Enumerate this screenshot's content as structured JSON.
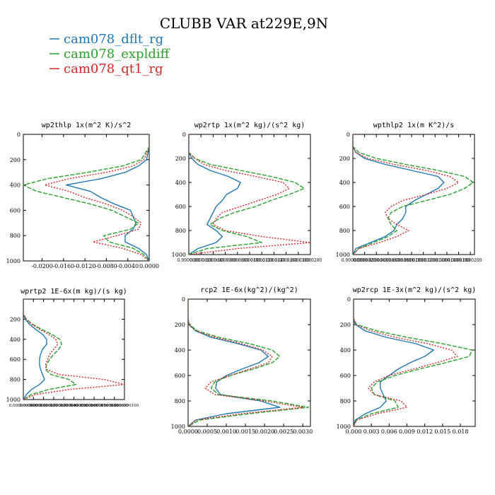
{
  "figure": {
    "title": "CLUBB VAR at229E,9N"
  },
  "colors": {
    "cam078_dflt_rg": "#1f77b4",
    "cam078_expldiff": "#2ca02c",
    "cam078_qt1_rg": "#d62728"
  },
  "legend": [
    {
      "name": "cam078_dflt_rg",
      "style": "solid"
    },
    {
      "name": "cam078_expldiff",
      "style": "dashed"
    },
    {
      "name": "cam078_qt1_rg",
      "style": "dotted"
    }
  ],
  "chart_data": [
    {
      "type": "line",
      "title": "wp2thlp  1x(m^2 K)/s^2",
      "ylim": [
        1000,
        0
      ],
      "yticks": [
        "0",
        "200",
        "400",
        "600",
        "800",
        "1000"
      ],
      "xlim": [
        -0.0235,
        0.0
      ],
      "xticks": [
        -0.02,
        -0.016,
        -0.012,
        -0.008,
        -0.004,
        0.0
      ],
      "xtick_labels": [
        "-0.0200",
        "-0.0160",
        "-0.0120",
        "-0.0080",
        "-0.0040",
        "0.0000"
      ],
      "y": [
        0,
        100,
        200,
        250,
        300,
        350,
        400,
        450,
        500,
        550,
        600,
        650,
        700,
        750,
        800,
        850,
        900,
        950,
        1000
      ],
      "series": [
        {
          "name": "cam078_dflt_rg",
          "values": [
            0,
            0,
            -0.0005,
            -0.002,
            -0.0045,
            -0.009,
            -0.0155,
            -0.011,
            -0.009,
            -0.0065,
            -0.0035,
            -0.003,
            -0.0025,
            -0.003,
            -0.0045,
            -0.0045,
            -0.002,
            -0.0005,
            0
          ]
        },
        {
          "name": "cam078_expldiff",
          "values": [
            0,
            0,
            -0.0015,
            -0.005,
            -0.0115,
            -0.019,
            -0.0235,
            -0.021,
            -0.016,
            -0.011,
            -0.007,
            -0.0045,
            -0.002,
            -0.0035,
            -0.0085,
            -0.0075,
            -0.003,
            -0.001,
            0
          ]
        },
        {
          "name": "cam078_qt1_rg",
          "values": [
            0,
            0,
            -0.001,
            -0.003,
            -0.008,
            -0.015,
            -0.0195,
            -0.015,
            -0.012,
            -0.008,
            -0.005,
            -0.003,
            -0.0015,
            -0.002,
            -0.006,
            -0.0105,
            -0.005,
            -0.0015,
            0
          ]
        }
      ]
    },
    {
      "type": "line",
      "title": "wp2rtp  1x(m^2 kg)/(s^2 kg)",
      "ylim": [
        1000,
        0
      ],
      "yticks": [
        "0",
        "200",
        "400",
        "600",
        "800",
        "1000"
      ],
      "xlim": [
        0,
        2e-05
      ],
      "xticks": [
        0,
        2e-06,
        4e-06,
        6e-06,
        8e-06,
        1e-05,
        1.2e-05,
        1.4e-05,
        1.6e-05,
        1.8e-05,
        2e-05
      ],
      "xtick_labels": [
        "0.0000000",
        "0.0000020",
        "0.0000040",
        "0.0000060",
        "0.0000080",
        "0.0000100",
        "0.0000120",
        "0.0000140",
        "0.0000160",
        "0.0000180",
        "0.0000200"
      ],
      "y": [
        0,
        100,
        150,
        200,
        250,
        300,
        350,
        400,
        450,
        500,
        550,
        600,
        650,
        700,
        750,
        800,
        850,
        900,
        950,
        1000
      ],
      "series": [
        {
          "name": "cam078_dflt_rg",
          "values": [
            0,
            0,
            0,
            5e-07,
            1.5e-06,
            3.5e-06,
            6.5e-06,
            8.5e-06,
            8e-06,
            6.2e-06,
            5.5e-06,
            4.5e-06,
            4e-06,
            3.5e-06,
            3e-06,
            4.5e-06,
            5.5e-06,
            4.5e-06,
            1.5e-06,
            0
          ]
        },
        {
          "name": "cam078_expldiff",
          "values": [
            0,
            0,
            0,
            1e-06,
            3.5e-06,
            8.5e-06,
            1.35e-05,
            1.75e-05,
            1.9e-05,
            1.65e-05,
            1.35e-05,
            1.1e-05,
            7.5e-06,
            5e-06,
            3.5e-06,
            5.5e-06,
            9.5e-06,
            1.2e-05,
            3e-06,
            0
          ]
        },
        {
          "name": "cam078_qt1_rg",
          "values": [
            0,
            0,
            0,
            1e-06,
            2.5e-06,
            6e-06,
            1.1e-05,
            1.55e-05,
            1.65e-05,
            1.45e-05,
            1.15e-05,
            8.5e-06,
            5.5e-06,
            4.5e-06,
            4e-06,
            6e-06,
            1.2e-05,
            2e-05,
            8e-06,
            0
          ]
        }
      ]
    },
    {
      "type": "line",
      "title": "wpthlp2  1x(m K^2)/s",
      "ylim": [
        1000,
        0
      ],
      "yticks": [
        "0",
        "200",
        "400",
        "600",
        "800",
        "1000"
      ],
      "xlim": [
        0,
        2.07e-05
      ],
      "xticks": [
        0,
        2e-06,
        4e-06,
        6e-06,
        8e-06,
        1e-05,
        1.2e-05,
        1.4e-05,
        1.6e-05,
        1.8e-05,
        2e-05
      ],
      "xtick_labels": [
        "0.0000000",
        "0.0000020",
        "0.0000040",
        "0.0000060",
        "0.0000080",
        "0.0000100",
        "0.0000120",
        "0.0000140",
        "0.0000160",
        "0.0000180",
        "0.0000200"
      ],
      "y": [
        0,
        100,
        150,
        200,
        250,
        300,
        350,
        400,
        450,
        500,
        550,
        600,
        650,
        700,
        750,
        800,
        850,
        900,
        950,
        1000
      ],
      "series": [
        {
          "name": "cam078_dflt_rg",
          "values": [
            0,
            0,
            5e-07,
            2e-06,
            5.5e-06,
            1e-05,
            1.45e-05,
            1.55e-05,
            1.45e-05,
            1.25e-05,
            1.05e-05,
            9e-06,
            9e-06,
            8.5e-06,
            7.5e-06,
            7e-06,
            5.5e-06,
            3e-06,
            5e-07,
            0
          ]
        },
        {
          "name": "cam078_expldiff",
          "values": [
            0,
            0,
            1e-06,
            4e-06,
            9e-06,
            1.45e-05,
            1.9e-05,
            2.05e-05,
            1.9e-05,
            1.65e-05,
            1.25e-05,
            8.5e-06,
            6.5e-06,
            6e-06,
            6.5e-06,
            7.5e-06,
            6e-06,
            3.5e-06,
            1e-06,
            0
          ]
        },
        {
          "name": "cam078_qt1_rg",
          "values": [
            0,
            0,
            5e-07,
            2.5e-06,
            7e-06,
            1.25e-05,
            1.65e-05,
            1.8e-05,
            1.6e-05,
            1.25e-05,
            8.5e-06,
            6.5e-06,
            5.5e-06,
            6e-06,
            7.5e-06,
            9.5e-06,
            7.5e-06,
            4.5e-06,
            1e-06,
            0
          ]
        }
      ]
    },
    {
      "type": "line",
      "title": "wprtp2  1E-6x(m kg)/(s kg)",
      "ylim": [
        1000,
        0
      ],
      "yticks": [
        "200",
        "400",
        "600",
        "800",
        "1000"
      ],
      "xlim": [
        0,
        1e-07
      ],
      "xticks": [
        0,
        1e-08,
        2e-08,
        3e-08,
        4e-08,
        5e-08,
        6e-08,
        7e-08,
        8e-08,
        9e-08,
        1e-07
      ],
      "xtick_labels": [
        "0.0000000000",
        "0.0000000010",
        "0.0000000020",
        "0.0000000030",
        "0.0000000040",
        "0.0000000050",
        "0.0000000060",
        "0.0000000070",
        "0.0000000080",
        "0.0000000090",
        "0.0000000100"
      ],
      "y": [
        0,
        150,
        200,
        250,
        300,
        350,
        400,
        450,
        500,
        550,
        600,
        650,
        700,
        750,
        800,
        850,
        900,
        950,
        1000
      ],
      "series": [
        {
          "name": "cam078_dflt_rg",
          "values": [
            0,
            0,
            2e-09,
            6e-09,
            1.2e-08,
            1.9e-08,
            2.3e-08,
            2.3e-08,
            1.9e-08,
            1.7e-08,
            1.6e-08,
            1.6e-08,
            1.7e-08,
            1.9e-08,
            2.1e-08,
            1.6e-08,
            8e-09,
            3e-09,
            0
          ]
        },
        {
          "name": "cam078_expldiff",
          "values": [
            0,
            0,
            3e-09,
            9e-09,
            1.8e-08,
            2.8e-08,
            3.6e-08,
            3.8e-08,
            3.5e-08,
            3e-08,
            2.6e-08,
            2.3e-08,
            2.2e-08,
            2.7e-08,
            4.5e-08,
            5.2e-08,
            2.5e-08,
            8e-09,
            0
          ]
        },
        {
          "name": "cam078_qt1_rg",
          "values": [
            0,
            0,
            3e-09,
            8e-09,
            1.6e-08,
            2.5e-08,
            3.2e-08,
            3.4e-08,
            3e-08,
            2.6e-08,
            2.4e-08,
            2.2e-08,
            2.3e-08,
            3.5e-08,
            8e-08,
            1e-07,
            4.5e-08,
            1.2e-08,
            0
          ]
        }
      ]
    },
    {
      "type": "line",
      "title": "rcp2  1E-6x(kg^2)/(kg^2)",
      "ylim": [
        1000,
        0
      ],
      "yticks": [
        "0",
        "200",
        "400",
        "600",
        "800",
        "1000"
      ],
      "xlim": [
        0,
        0.00032
      ],
      "xticks": [
        0,
        5e-05,
        0.0001,
        0.00015,
        0.0002,
        0.00025,
        0.0003
      ],
      "xtick_labels": [
        "0.0000",
        "0.0005",
        "0.0010",
        "0.0015",
        "0.0020",
        "0.0025",
        "0.0030"
      ],
      "y": [
        0,
        150,
        200,
        250,
        300,
        350,
        400,
        450,
        500,
        550,
        600,
        650,
        700,
        750,
        800,
        850,
        900,
        950,
        1000
      ],
      "series": [
        {
          "name": "cam078_dflt_rg",
          "values": [
            0,
            0,
            2e-06,
            2e-05,
            6e-05,
            0.00013,
            0.00019,
            0.00021,
            0.000185,
            0.00014,
            0.0001,
            7.5e-05,
            7.2e-05,
            8.5e-05,
            0.00019,
            0.00024,
            0.0001,
            2e-05,
            0
          ]
        },
        {
          "name": "cam078_expldiff",
          "values": [
            0,
            0,
            3e-06,
            2.5e-05,
            8e-05,
            0.00016,
            0.00022,
            0.00024,
            0.00022,
            0.00017,
            0.00011,
            7e-05,
            6e-05,
            8e-05,
            0.00022,
            0.000315,
            0.00016,
            3e-05,
            0
          ]
        },
        {
          "name": "cam078_qt1_rg",
          "values": [
            0,
            0,
            2e-06,
            2e-05,
            7e-05,
            0.00014,
            0.000195,
            0.00022,
            0.00021,
            0.00016,
            0.00011,
            6e-05,
            4.5e-05,
            7e-05,
            0.0002,
            0.0003,
            0.00014,
            2e-05,
            0
          ]
        }
      ]
    },
    {
      "type": "line",
      "title": "wp2rcp  1E-3x(m^2 kg)/(s^2 kg)",
      "ylim": [
        1000,
        0
      ],
      "yticks": [
        "0",
        "200",
        "400",
        "600",
        "800",
        "1000"
      ],
      "xlim": [
        0,
        2.05e-05
      ],
      "xticks": [
        0,
        3e-06,
        6e-06,
        9e-06,
        1.2e-05,
        1.5e-05,
        1.8e-05
      ],
      "xtick_labels": [
        "0.000",
        "0.003",
        "0.006",
        "0.009",
        "0.012",
        "0.015",
        "0.018"
      ],
      "y": [
        0,
        150,
        200,
        250,
        300,
        350,
        400,
        450,
        500,
        550,
        600,
        650,
        700,
        750,
        800,
        850,
        900,
        950,
        1000
      ],
      "series": [
        {
          "name": "cam078_dflt_rg",
          "values": [
            0,
            0,
            3e-07,
            2e-06,
            5.5e-06,
            1.05e-05,
            1.35e-05,
            1.2e-05,
            9.5e-06,
            7.5e-06,
            6e-06,
            4.5e-06,
            4.5e-06,
            5e-06,
            5.5e-06,
            4.5e-06,
            2e-06,
            3e-07,
            0
          ]
        },
        {
          "name": "cam078_expldiff",
          "values": [
            0,
            0,
            5e-07,
            4e-06,
            9e-06,
            1.5e-05,
            2e-05,
            1.95e-05,
            1.55e-05,
            1.1e-05,
            7e-06,
            4e-06,
            3e-06,
            3.5e-06,
            7e-06,
            7.5e-06,
            3e-06,
            5e-07,
            0
          ]
        },
        {
          "name": "cam078_qt1_rg",
          "values": [
            0,
            0,
            4e-07,
            3e-06,
            7e-06,
            1.25e-05,
            1.65e-05,
            1.75e-05,
            1.4e-05,
            1e-05,
            6e-06,
            3.5e-06,
            2.5e-06,
            3.5e-06,
            8e-06,
            9e-06,
            4e-06,
            5e-07,
            0
          ]
        }
      ]
    }
  ]
}
